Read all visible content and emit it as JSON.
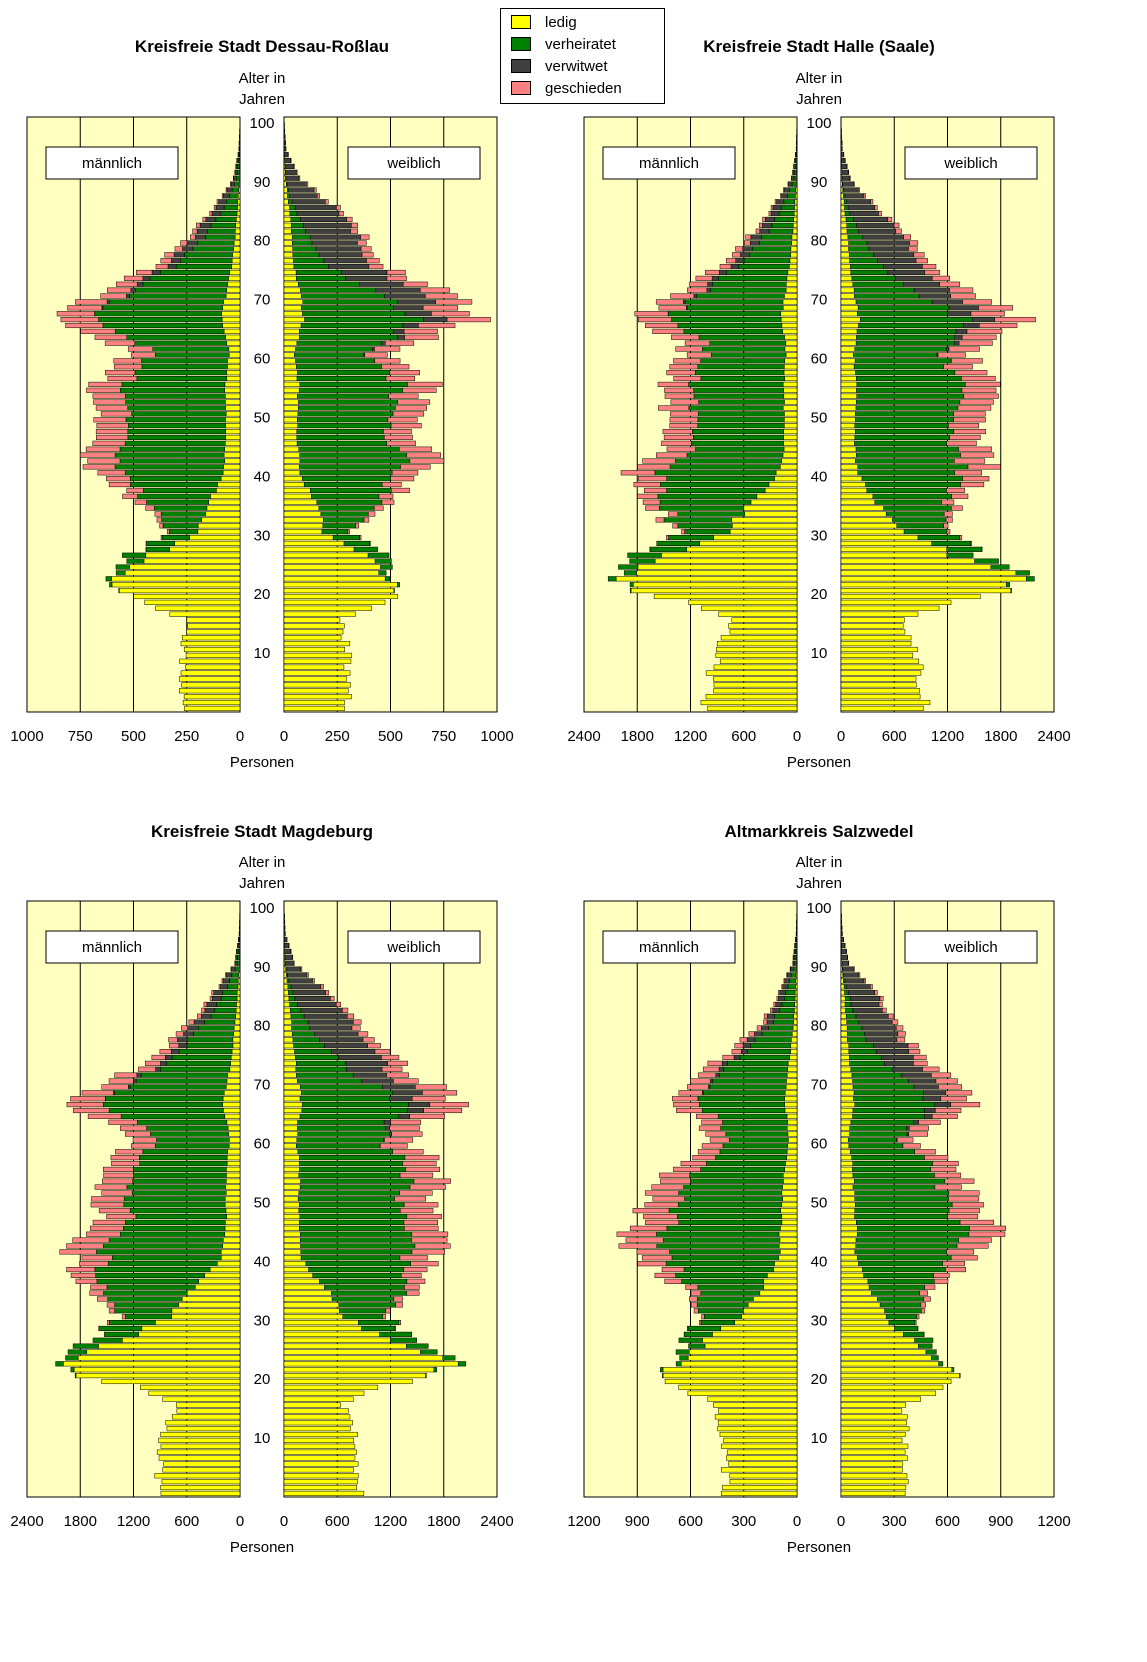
{
  "legend": {
    "items": [
      {
        "label": "ledig",
        "color": "#ffff00"
      },
      {
        "label": "verheiratet",
        "color": "#008000"
      },
      {
        "label": "verwitwet",
        "color": "#404040"
      },
      {
        "label": "geschieden",
        "color": "#ff8080"
      }
    ]
  },
  "chart_data": [
    {
      "type": "population-pyramid",
      "title": "Kreisfreie Stadt Dessau-Roßlau",
      "ylabel": "Alter in Jahren",
      "xlabel": "Personen",
      "left_label": "männlich",
      "right_label": "weiblich",
      "age_ticks": [
        10,
        20,
        30,
        40,
        50,
        60,
        70,
        80,
        90,
        100
      ],
      "x_tick_labels": [
        "1000",
        "750",
        "500",
        "250",
        "0"
      ],
      "x_max": 1000,
      "series_order": [
        "ledig",
        "verheiratet",
        "verwitwet",
        "geschieden"
      ],
      "male_total_approx": {
        "ages": [
          0,
          10,
          15,
          18,
          20,
          24,
          27,
          30,
          35,
          40,
          43,
          45,
          50,
          55,
          60,
          63,
          66,
          70,
          75,
          80,
          85,
          90,
          95,
          100
        ],
        "values": [
          270,
          270,
          260,
          470,
          600,
          610,
          470,
          330,
          480,
          680,
          800,
          700,
          670,
          690,
          520,
          640,
          860,
          700,
          400,
          250,
          120,
          30,
          5,
          0
        ]
      },
      "female_total_approx": {
        "ages": [
          0,
          10,
          15,
          18,
          20,
          24,
          27,
          30,
          35,
          40,
          43,
          45,
          50,
          55,
          60,
          63,
          66,
          70,
          75,
          80,
          85,
          90,
          95,
          100
        ],
        "values": [
          300,
          300,
          260,
          460,
          540,
          500,
          460,
          330,
          500,
          640,
          780,
          650,
          630,
          700,
          490,
          700,
          910,
          800,
          480,
          400,
          250,
          70,
          10,
          0
        ]
      }
    },
    {
      "type": "population-pyramid",
      "title": "Kreisfreie Stadt Halle (Saale)",
      "ylabel": "Alter in Jahren",
      "xlabel": "Personen",
      "left_label": "männlich",
      "right_label": "weiblich",
      "age_ticks": [
        10,
        20,
        30,
        40,
        50,
        60,
        70,
        80,
        90,
        100
      ],
      "x_tick_labels": [
        "2400",
        "1800",
        "1200",
        "600",
        "0"
      ],
      "x_max": 2400,
      "series_order": [
        "ledig",
        "verheiratet",
        "verwitwet",
        "geschieden"
      ],
      "male_total_approx": {
        "ages": [
          0,
          10,
          15,
          18,
          20,
          22,
          25,
          30,
          35,
          40,
          45,
          50,
          55,
          60,
          63,
          66,
          70,
          75,
          80,
          85,
          90,
          95,
          100
        ],
        "values": [
          1050,
          900,
          750,
          1250,
          1800,
          2000,
          1900,
          1350,
          1700,
          1900,
          1450,
          1500,
          1550,
          1250,
          1400,
          1850,
          1400,
          900,
          550,
          280,
          60,
          10,
          0
        ]
      },
      "female_total_approx": {
        "ages": [
          0,
          10,
          15,
          18,
          20,
          22,
          25,
          30,
          35,
          40,
          45,
          50,
          55,
          60,
          63,
          66,
          70,
          75,
          80,
          85,
          90,
          95,
          100
        ],
        "values": [
          950,
          850,
          700,
          1200,
          1800,
          2150,
          1700,
          1200,
          1350,
          1700,
          1600,
          1550,
          1800,
          1450,
          1700,
          2100,
          1550,
          1100,
          800,
          400,
          100,
          15,
          0
        ]
      }
    },
    {
      "type": "population-pyramid",
      "title": "Kreisfreie Stadt Magdeburg",
      "ylabel": "Alter in Jahren",
      "xlabel": "Personen",
      "left_label": "männlich",
      "right_label": "weiblich",
      "age_ticks": [
        10,
        20,
        30,
        40,
        50,
        60,
        70,
        80,
        90,
        100
      ],
      "x_tick_labels": [
        "2400",
        "1800",
        "1200",
        "600",
        "0"
      ],
      "x_max": 2400,
      "series_order": [
        "ledig",
        "verheiratet",
        "verwitwet",
        "geschieden"
      ],
      "male_total_approx": {
        "ages": [
          0,
          10,
          15,
          18,
          20,
          22,
          25,
          30,
          35,
          40,
          43,
          45,
          50,
          55,
          60,
          63,
          66,
          70,
          75,
          80,
          85,
          90,
          95,
          100
        ],
        "values": [
          950,
          850,
          700,
          1200,
          1750,
          2000,
          1800,
          1300,
          1750,
          1900,
          2000,
          1600,
          1600,
          1550,
          1250,
          1550,
          1900,
          1450,
          900,
          550,
          300,
          60,
          10,
          0
        ]
      },
      "female_total_approx": {
        "ages": [
          0,
          10,
          15,
          18,
          20,
          22,
          25,
          30,
          35,
          40,
          43,
          45,
          50,
          55,
          60,
          63,
          66,
          70,
          75,
          80,
          85,
          90,
          95,
          100
        ],
        "values": [
          850,
          800,
          650,
          1100,
          1700,
          2000,
          1600,
          1150,
          1500,
          1700,
          1850,
          1650,
          1700,
          1800,
          1400,
          1650,
          2050,
          1600,
          1150,
          850,
          500,
          120,
          15,
          0
        ]
      }
    },
    {
      "type": "population-pyramid",
      "title": "Altmarkkreis Salzwedel",
      "ylabel": "Alter in Jahren",
      "xlabel": "Personen",
      "left_label": "männlich",
      "right_label": "weiblich",
      "age_ticks": [
        10,
        20,
        30,
        40,
        50,
        60,
        70,
        80,
        90,
        100
      ],
      "x_tick_labels": [
        "1200",
        "900",
        "600",
        "300",
        "0"
      ],
      "x_max": 1200,
      "series_order": [
        "ledig",
        "verheiratet",
        "verwitwet",
        "geschieden"
      ],
      "male_total_approx": {
        "ages": [
          0,
          10,
          15,
          18,
          20,
          25,
          30,
          35,
          40,
          43,
          45,
          50,
          55,
          60,
          63,
          66,
          70,
          75,
          80,
          85,
          90,
          95,
          100
        ],
        "values": [
          400,
          420,
          450,
          650,
          750,
          650,
          550,
          650,
          900,
          1000,
          900,
          850,
          700,
          480,
          550,
          700,
          620,
          380,
          200,
          100,
          25,
          5,
          0
        ]
      },
      "female_total_approx": {
        "ages": [
          0,
          10,
          15,
          18,
          20,
          25,
          30,
          35,
          40,
          43,
          45,
          50,
          55,
          60,
          63,
          66,
          70,
          75,
          80,
          85,
          90,
          95,
          100
        ],
        "values": [
          350,
          370,
          350,
          600,
          650,
          500,
          430,
          520,
          750,
          880,
          870,
          750,
          680,
          420,
          550,
          780,
          620,
          430,
          320,
          200,
          45,
          8,
          0
        ]
      }
    }
  ]
}
